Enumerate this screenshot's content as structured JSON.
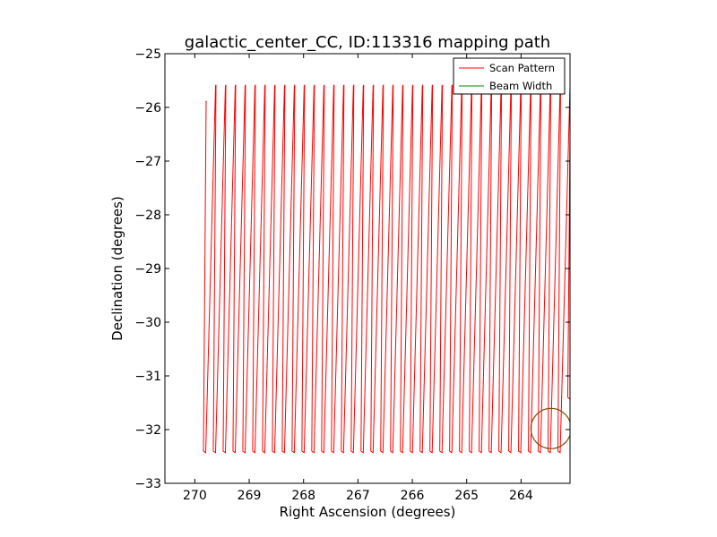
{
  "chart_data": {
    "type": "line",
    "title": "galactic_center_CC, ID:113316 mapping path",
    "xlabel": "Right Ascension (degrees)",
    "ylabel": "Declination (degrees)",
    "xlim": [
      270.55,
      263.1
    ],
    "ylim": [
      -33,
      -25
    ],
    "x_inverted": true,
    "xticks": [
      270,
      269,
      268,
      267,
      266,
      265,
      264
    ],
    "yticks": [
      -25,
      -26,
      -27,
      -28,
      -29,
      -30,
      -31,
      -32,
      -33
    ],
    "xtick_labels": [
      "270",
      "269",
      "268",
      "267",
      "266",
      "265",
      "264"
    ],
    "ytick_labels": [
      "−25",
      "−26",
      "−27",
      "−28",
      "−29",
      "−30",
      "−31",
      "−32",
      "−33"
    ],
    "grid": false,
    "legend_position": "top-right",
    "series": [
      {
        "name": "Scan Pattern",
        "color": "#ff0000",
        "scan": {
          "ra_start": 269.8,
          "ra_end": 263.1,
          "dec_top": -25.6,
          "dec_bottom": -32.4,
          "dec_start": -25.9,
          "dec_end": -31.4,
          "legs": 38
        }
      },
      {
        "name": "Beam Width",
        "color": "#008000",
        "circle": {
          "ra": 263.45,
          "dec": -31.98,
          "radius_deg": 0.37
        }
      }
    ]
  }
}
